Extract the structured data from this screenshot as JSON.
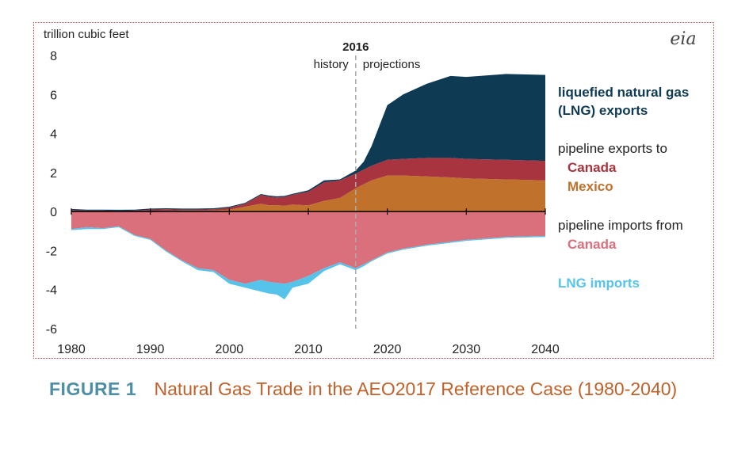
{
  "chart_data": {
    "type": "area",
    "ylabel": "trillion cubic feet",
    "xlim": [
      1980,
      2040
    ],
    "ylim": [
      -6,
      8
    ],
    "x_ticks": [
      1980,
      1990,
      2000,
      2010,
      2020,
      2030,
      2040
    ],
    "y_ticks": [
      8,
      6,
      4,
      2,
      0,
      -2,
      -4,
      -6
    ],
    "divider": {
      "year": 2016,
      "label": "2016",
      "left_label": "history",
      "right_label": "projections"
    },
    "logo": "eia",
    "x": [
      1980,
      1982,
      1984,
      1986,
      1988,
      1990,
      1992,
      1994,
      1996,
      1998,
      2000,
      2002,
      2004,
      2005,
      2006,
      2007,
      2008,
      2010,
      2012,
      2014,
      2016,
      2017,
      2018,
      2020,
      2022,
      2025,
      2028,
      2030,
      2035,
      2040
    ],
    "series": [
      {
        "name": "Mexico",
        "group": "pipeline exports to",
        "side": "positive",
        "color": "#c0712c",
        "values": [
          0,
          0,
          0,
          0,
          0,
          0.02,
          0.04,
          0.05,
          0.05,
          0.06,
          0.1,
          0.25,
          0.4,
          0.32,
          0.33,
          0.3,
          0.36,
          0.32,
          0.55,
          0.7,
          1.2,
          1.4,
          1.6,
          1.85,
          1.85,
          1.8,
          1.75,
          1.7,
          1.65,
          1.6
        ]
      },
      {
        "name": "Canada",
        "group": "pipeline exports to",
        "side": "positive",
        "color": "#a83440",
        "values": [
          0.08,
          0.05,
          0.05,
          0.04,
          0.05,
          0.08,
          0.08,
          0.05,
          0.05,
          0.06,
          0.1,
          0.15,
          0.45,
          0.45,
          0.4,
          0.45,
          0.5,
          0.7,
          0.95,
          0.9,
          0.75,
          0.75,
          0.75,
          0.8,
          0.85,
          0.95,
          1.0,
          1.0,
          1.0,
          1.0
        ]
      },
      {
        "name": "liquefied natural gas (LNG) exports",
        "side": "positive",
        "color": "#0e3a53",
        "values": [
          0.05,
          0.05,
          0.05,
          0.05,
          0.05,
          0.05,
          0.05,
          0.05,
          0.05,
          0.05,
          0.05,
          0.05,
          0.05,
          0.05,
          0.05,
          0.05,
          0.05,
          0.07,
          0.1,
          0.05,
          0.15,
          0.4,
          1.0,
          2.8,
          3.3,
          3.8,
          4.2,
          4.2,
          4.4,
          4.4
        ]
      },
      {
        "name": "Canada",
        "group": "pipeline imports from",
        "side": "negative",
        "color": "#d9707b",
        "values": [
          -0.9,
          -0.8,
          -0.85,
          -0.75,
          -1.2,
          -1.4,
          -2.0,
          -2.5,
          -2.9,
          -3.0,
          -3.5,
          -3.7,
          -3.5,
          -3.6,
          -3.65,
          -3.7,
          -3.6,
          -3.3,
          -2.9,
          -2.6,
          -2.9,
          -2.7,
          -2.5,
          -2.1,
          -1.9,
          -1.7,
          -1.55,
          -1.45,
          -1.3,
          -1.25
        ]
      },
      {
        "name": "LNG imports",
        "side": "negative",
        "color": "#55c3ea",
        "values": [
          -0.05,
          -0.1,
          -0.05,
          -0.05,
          -0.05,
          -0.05,
          -0.05,
          -0.05,
          -0.1,
          -0.1,
          -0.2,
          -0.2,
          -0.6,
          -0.6,
          -0.6,
          -0.8,
          -0.3,
          -0.4,
          -0.15,
          -0.1,
          -0.1,
          -0.1,
          -0.05,
          -0.05,
          -0.05,
          -0.05,
          -0.05,
          -0.05,
          -0.05,
          -0.05
        ]
      }
    ],
    "legend": {
      "lng_exports_lines": [
        "liquefied natural gas",
        "(LNG) exports"
      ],
      "pipe_exports_heading": "pipeline exports to",
      "pipe_exports_canada": "Canada",
      "pipe_exports_mexico": "Mexico",
      "pipe_imports_heading": "pipeline imports from",
      "pipe_imports_canada": "Canada",
      "lng_imports": "LNG imports"
    },
    "colors": {
      "legend_dark": "#0e3a53",
      "legend_red": "#a83440",
      "legend_orange": "#c0712c",
      "legend_pink": "#d9707b",
      "legend_blue": "#55c3ea",
      "divider": "#aaaaaa"
    }
  },
  "caption": {
    "figure_label": "FIGURE 1",
    "title": "Natural Gas Trade in the AEO2017 Reference Case (1980-2040)"
  }
}
